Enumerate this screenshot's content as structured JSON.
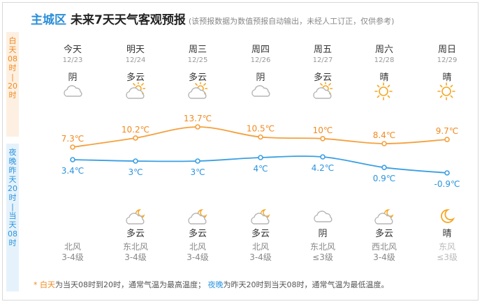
{
  "title": {
    "district": "主城区",
    "main": "未来7天天气客观预报",
    "note": "(该预报数据为数值预报自动输出，未经人工订正，仅供参考)"
  },
  "side_labels": {
    "day": [
      "白",
      "天",
      "08",
      "时",
      "|",
      "20",
      "时"
    ],
    "night": [
      "夜",
      "晚",
      "昨",
      "天",
      "20",
      "时",
      "|",
      "当",
      "天",
      "08",
      "时"
    ]
  },
  "days": [
    {
      "week": "今天",
      "date": "12/23",
      "day_weather": "阴",
      "day_icon": "overcast-icon",
      "night_weather": "",
      "night_icon": "",
      "wind_dir": "北风",
      "wind_level": "3-4级"
    },
    {
      "week": "明天",
      "date": "12/24",
      "day_weather": "多云",
      "day_icon": "partly-cloudy-icon",
      "night_weather": "多云",
      "night_icon": "partly-cloudy-night-icon",
      "wind_dir": "东北风",
      "wind_level": "3-4级"
    },
    {
      "week": "周三",
      "date": "12/25",
      "day_weather": "多云",
      "day_icon": "partly-cloudy-icon",
      "night_weather": "多云",
      "night_icon": "partly-cloudy-night-icon",
      "wind_dir": "北风",
      "wind_level": "3-4级"
    },
    {
      "week": "周四",
      "date": "12/26",
      "day_weather": "阴",
      "day_icon": "overcast-icon",
      "night_weather": "多云",
      "night_icon": "partly-cloudy-night-icon",
      "wind_dir": "北风",
      "wind_level": "3-4级"
    },
    {
      "week": "周五",
      "date": "12/27",
      "day_weather": "多云",
      "day_icon": "partly-cloudy-icon",
      "night_weather": "阴",
      "night_icon": "overcast-icon",
      "wind_dir": "东北风",
      "wind_level": "≤3级"
    },
    {
      "week": "周六",
      "date": "12/28",
      "day_weather": "晴",
      "day_icon": "sunny-icon",
      "night_weather": "多云",
      "night_icon": "partly-cloudy-night-icon",
      "wind_dir": "西北风",
      "wind_level": "3-4级"
    },
    {
      "week": "周日",
      "date": "12/29",
      "day_weather": "晴",
      "day_icon": "sunny-icon",
      "night_weather": "晴",
      "night_icon": "moon-icon",
      "wind_dir": "东风",
      "wind_level": "≤3级"
    }
  ],
  "chart_data": {
    "type": "line",
    "categories": [
      "12/23",
      "12/24",
      "12/25",
      "12/26",
      "12/27",
      "12/28",
      "12/29"
    ],
    "series": [
      {
        "values": [
          7.3,
          10.2,
          13.7,
          10.5,
          10,
          8.4,
          9.7
        ],
        "labels": [
          "7.3℃",
          "10.2℃",
          "13.7℃",
          "10.5℃",
          "10℃",
          "8.4℃",
          "9.7℃"
        ],
        "color": "#f5a03c"
      },
      {
        "values": [
          3.4,
          3,
          3,
          4,
          4.2,
          0.9,
          -0.9
        ],
        "labels": [
          "3.4℃",
          "3℃",
          "3℃",
          "4℃",
          "4.2℃",
          "0.9℃",
          "-0.9℃"
        ],
        "color": "#3a9fe4"
      }
    ]
  },
  "footnote": {
    "star": "*",
    "day_key": "白天",
    "day_text": "为当天08时到20时，通常气温为最高温度；",
    "night_key": "夜晚",
    "night_text": "为昨天20时到当天08时，通常气温为最低温度。"
  },
  "colors": {
    "day": "#f08a1f",
    "night": "#2b94de",
    "sun": "#f5a623",
    "cloud": "#b5b5b5"
  }
}
